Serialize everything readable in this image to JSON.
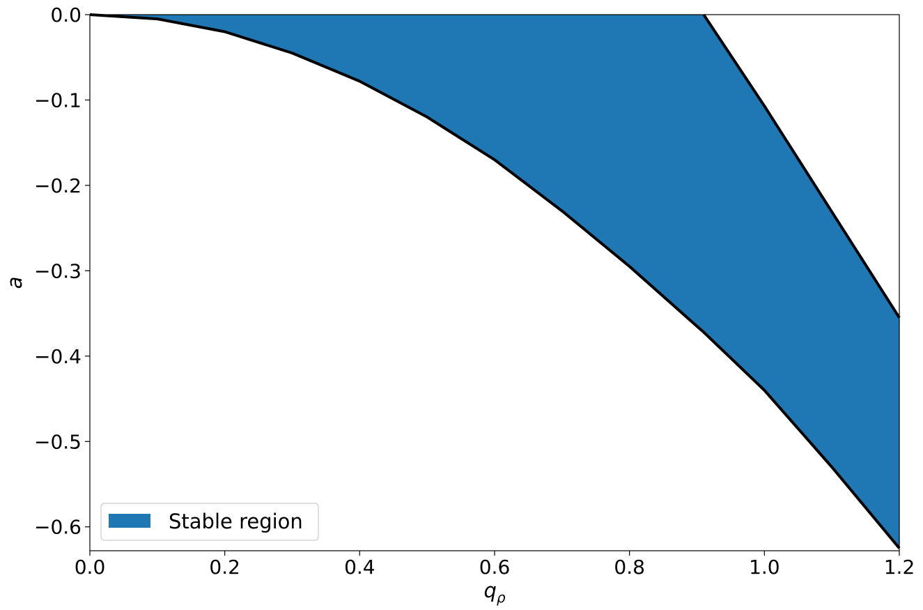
{
  "chart_data": {
    "type": "area",
    "xlabel": "q",
    "xlabel_subscript": "ρ",
    "ylabel": "a",
    "xlim": [
      0.0,
      1.2
    ],
    "ylim": [
      -0.628,
      0.0
    ],
    "x_ticks": [
      0.0,
      0.2,
      0.4,
      0.6,
      0.8,
      1.0,
      1.2
    ],
    "x_tick_labels": [
      "0.0",
      "0.2",
      "0.4",
      "0.6",
      "0.8",
      "1.0",
      "1.2"
    ],
    "y_ticks": [
      0.0,
      -0.1,
      -0.2,
      -0.3,
      -0.4,
      -0.5,
      -0.6
    ],
    "y_tick_labels": [
      "0.0",
      "−0.1",
      "−0.2",
      "−0.3",
      "−0.4",
      "−0.5",
      "−0.6"
    ],
    "grid": false,
    "legend": {
      "position": "lower-left",
      "entries": [
        "Stable region"
      ]
    },
    "fill_color": "#1f77b4",
    "boundary_color": "#000000",
    "series": [
      {
        "name": "Stable region",
        "x": [
          0.0,
          0.1,
          0.2,
          0.3,
          0.4,
          0.5,
          0.6,
          0.7,
          0.8,
          0.9,
          0.91,
          1.0,
          1.1,
          1.2
        ],
        "lower": [
          0.0,
          -0.005,
          -0.02,
          -0.045,
          -0.078,
          -0.12,
          -0.17,
          -0.23,
          -0.295,
          -0.365,
          -0.372,
          -0.44,
          -0.53,
          -0.625
        ],
        "upper": [
          0.0,
          0.0,
          0.0,
          0.0,
          0.0,
          0.0,
          0.0,
          0.0,
          0.0,
          0.0,
          0.0,
          -0.107,
          -0.231,
          -0.355
        ]
      }
    ]
  }
}
